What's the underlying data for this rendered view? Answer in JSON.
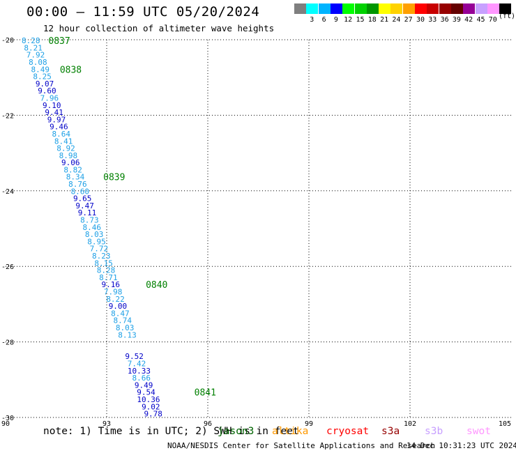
{
  "header": {
    "title": "00:00 — 11:59 UTC 05/20/2024",
    "subtitle": "12 hour collection of altimeter wave heights"
  },
  "legend": {
    "unit": "(ft)",
    "bins": [
      {
        "color": "#7f7f7f",
        "label": ""
      },
      {
        "color": "#00ffff",
        "label": "3"
      },
      {
        "color": "#00b4ff",
        "label": "6"
      },
      {
        "color": "#0000ff",
        "label": "9"
      },
      {
        "color": "#00ff00",
        "label": "12"
      },
      {
        "color": "#00d200",
        "label": "15"
      },
      {
        "color": "#009600",
        "label": "18"
      },
      {
        "color": "#ffff00",
        "label": "21"
      },
      {
        "color": "#ffd200",
        "label": "24"
      },
      {
        "color": "#ffa000",
        "label": "27"
      },
      {
        "color": "#ff0000",
        "label": "30"
      },
      {
        "color": "#c80000",
        "label": "33"
      },
      {
        "color": "#960000",
        "label": "36"
      },
      {
        "color": "#640000",
        "label": "39"
      },
      {
        "color": "#960096",
        "label": "42"
      },
      {
        "color": "#c8a0ff",
        "label": "45"
      },
      {
        "color": "#ff96ff",
        "label": "70"
      },
      {
        "color": "#000000",
        "label": ""
      }
    ]
  },
  "chart_data": {
    "type": "scatter",
    "title": "00:00 — 11:59 UTC 05/20/2024",
    "subtitle": "12 hour collection of altimeter wave heights",
    "xlim": [
      90,
      105
    ],
    "ylim": [
      -30,
      -20
    ],
    "x_ticks": [
      90,
      93,
      96,
      99,
      102,
      105
    ],
    "x_tick_labels": [
      "90",
      "93",
      "96",
      "99",
      "102",
      "105"
    ],
    "y_ticks": [
      -20,
      -22,
      -24,
      -26,
      -28,
      -30
    ],
    "y_tick_labels": [
      "-20",
      "-22",
      "-24",
      "-26",
      "-28",
      "-30"
    ],
    "grid": true,
    "colors": {
      "light": "#1ea0e6",
      "dark": "#0000c8",
      "time": "#008000"
    },
    "points": [
      {
        "lon": 90.75,
        "lat": -20.02,
        "swh": 8.28
      },
      {
        "lon": 90.82,
        "lat": -20.21,
        "swh": 8.21
      },
      {
        "lon": 90.89,
        "lat": -20.4,
        "swh": 7.92
      },
      {
        "lon": 90.96,
        "lat": -20.59,
        "swh": 8.08
      },
      {
        "lon": 91.03,
        "lat": -20.78,
        "swh": 8.49
      },
      {
        "lon": 91.09,
        "lat": -20.97,
        "swh": 8.25
      },
      {
        "lon": 91.16,
        "lat": -21.16,
        "swh": 9.07
      },
      {
        "lon": 91.23,
        "lat": -21.35,
        "swh": 9.6
      },
      {
        "lon": 91.3,
        "lat": -21.54,
        "swh": 7.96
      },
      {
        "lon": 91.37,
        "lat": -21.73,
        "swh": 9.1
      },
      {
        "lon": 91.44,
        "lat": -21.92,
        "swh": 9.41
      },
      {
        "lon": 91.51,
        "lat": -22.11,
        "swh": 9.97
      },
      {
        "lon": 91.58,
        "lat": -22.3,
        "swh": 9.46
      },
      {
        "lon": 91.65,
        "lat": -22.49,
        "swh": 8.64
      },
      {
        "lon": 91.72,
        "lat": -22.68,
        "swh": 8.41
      },
      {
        "lon": 91.79,
        "lat": -22.87,
        "swh": 8.92
      },
      {
        "lon": 91.86,
        "lat": -23.06,
        "swh": 8.98
      },
      {
        "lon": 91.93,
        "lat": -23.25,
        "swh": 9.06
      },
      {
        "lon": 92.0,
        "lat": -23.44,
        "swh": 8.82
      },
      {
        "lon": 92.07,
        "lat": -23.63,
        "swh": 8.34
      },
      {
        "lon": 92.14,
        "lat": -23.82,
        "swh": 8.76
      },
      {
        "lon": 92.21,
        "lat": -24.01,
        "swh": 8.6
      },
      {
        "lon": 92.28,
        "lat": -24.2,
        "swh": 9.65
      },
      {
        "lon": 92.35,
        "lat": -24.39,
        "swh": 9.47
      },
      {
        "lon": 92.42,
        "lat": -24.58,
        "swh": 9.11
      },
      {
        "lon": 92.49,
        "lat": -24.77,
        "swh": 8.73
      },
      {
        "lon": 92.56,
        "lat": -24.96,
        "swh": 8.46
      },
      {
        "lon": 92.63,
        "lat": -25.15,
        "swh": 8.03
      },
      {
        "lon": 92.7,
        "lat": -25.34,
        "swh": 8.95
      },
      {
        "lon": 92.77,
        "lat": -25.53,
        "swh": 7.72
      },
      {
        "lon": 92.84,
        "lat": -25.72,
        "swh": 8.23
      },
      {
        "lon": 92.91,
        "lat": -25.91,
        "swh": 8.15
      },
      {
        "lon": 92.98,
        "lat": -26.1,
        "swh": 8.28
      },
      {
        "lon": 93.05,
        "lat": -26.29,
        "swh": 8.71
      },
      {
        "lon": 93.12,
        "lat": -26.48,
        "swh": 9.16
      },
      {
        "lon": 93.19,
        "lat": -26.67,
        "swh": 7.98
      },
      {
        "lon": 93.26,
        "lat": -26.86,
        "swh": 8.22
      },
      {
        "lon": 93.33,
        "lat": -27.05,
        "swh": 9.0
      },
      {
        "lon": 93.4,
        "lat": -27.24,
        "swh": 8.47
      },
      {
        "lon": 93.47,
        "lat": -27.43,
        "swh": 8.74
      },
      {
        "lon": 93.54,
        "lat": -27.62,
        "swh": 8.03
      },
      {
        "lon": 93.61,
        "lat": -27.81,
        "swh": 8.13
      },
      {
        "lon": 93.82,
        "lat": -28.38,
        "swh": 9.52
      },
      {
        "lon": 93.89,
        "lat": -28.57,
        "swh": 7.42
      },
      {
        "lon": 93.96,
        "lat": -28.76,
        "swh": 10.33
      },
      {
        "lon": 94.03,
        "lat": -28.95,
        "swh": 8.66
      },
      {
        "lon": 94.1,
        "lat": -29.14,
        "swh": 9.49
      },
      {
        "lon": 94.17,
        "lat": -29.33,
        "swh": 9.54
      },
      {
        "lon": 94.24,
        "lat": -29.52,
        "swh": 10.36
      },
      {
        "lon": 94.31,
        "lat": -29.71,
        "swh": 9.02
      },
      {
        "lon": 94.38,
        "lat": -29.9,
        "swh": 9.78
      }
    ],
    "time_labels": [
      {
        "text": "0837",
        "lon": 91.27,
        "lat": -20.02
      },
      {
        "text": "0838",
        "lon": 91.61,
        "lat": -20.78
      },
      {
        "text": "0839",
        "lon": 92.9,
        "lat": -23.63
      },
      {
        "text": "0840",
        "lon": 94.16,
        "lat": -26.48
      },
      {
        "text": "0841",
        "lon": 95.6,
        "lat": -29.33
      }
    ]
  },
  "footer": {
    "note": "note: 1) Time is in UTC; 2) SWH is in feet",
    "missions": [
      {
        "name": "jason3",
        "color": "#006400",
        "left": 312
      },
      {
        "name": "altika",
        "color": "#ff9900",
        "left": 390
      },
      {
        "name": "cryosat",
        "color": "#ff0000",
        "left": 468
      },
      {
        "name": "s3a",
        "color": "#960000",
        "left": 547
      },
      {
        "name": "s3b",
        "color": "#c8a0ff",
        "left": 609
      },
      {
        "name": "swot",
        "color": "#ff96ff",
        "left": 669
      }
    ],
    "credit": "NOAA/NESDIS Center for Satellite Applications and Research",
    "timestamp": "14 Dec 10:31:23 UTC 2024"
  }
}
